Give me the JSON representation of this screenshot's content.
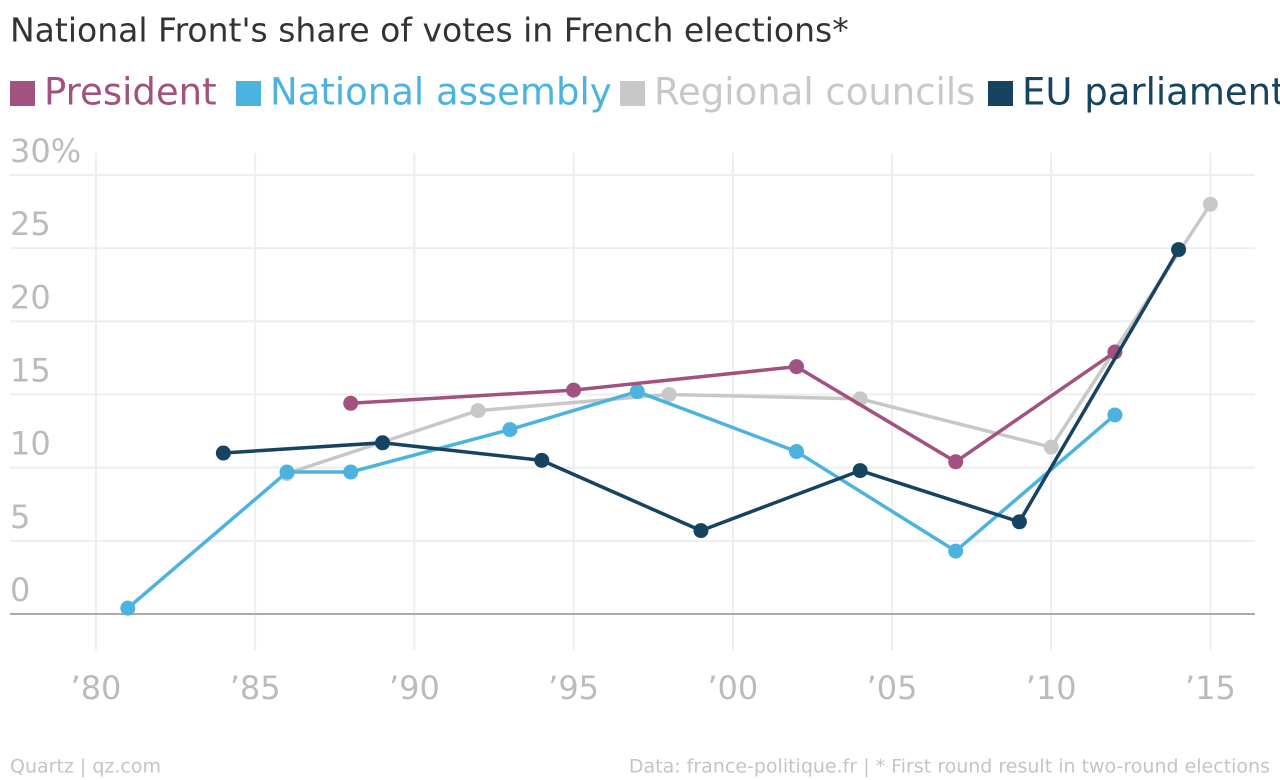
{
  "chart_data": {
    "type": "line",
    "title": "National Front's share of votes in French elections*",
    "xlim": [
      1977.3,
      2016.4
    ],
    "xticks": [
      {
        "value": 1980,
        "label": "’80"
      },
      {
        "value": 1985,
        "label": "’85"
      },
      {
        "value": 1990,
        "label": "’90"
      },
      {
        "value": 1995,
        "label": "’95"
      },
      {
        "value": 2000,
        "label": "’00"
      },
      {
        "value": 2005,
        "label": "’05"
      },
      {
        "value": 2010,
        "label": "’10"
      },
      {
        "value": 2015,
        "label": "’15"
      }
    ],
    "ylim": [
      -2.5,
      31.5
    ],
    "yticks": [
      0,
      5,
      10,
      15,
      20,
      25,
      {
        "value": 30,
        "label": "30%"
      }
    ],
    "grid": true,
    "series": [
      {
        "name": "President",
        "color": "#a2527f",
        "x": [
          1988,
          1995,
          2002,
          2007,
          2012
        ],
        "values": [
          14.4,
          15.3,
          16.9,
          10.4,
          17.9
        ]
      },
      {
        "name": "National assembly",
        "color": "#4cb3e0",
        "x": [
          1981,
          1986,
          1988,
          1993,
          1997,
          2002,
          2007,
          2012
        ],
        "values": [
          0.4,
          9.7,
          9.7,
          12.6,
          15.2,
          11.1,
          4.3,
          13.6
        ]
      },
      {
        "name": "Regional councils",
        "color": "#c8c8c8",
        "x": [
          1986,
          1992,
          1998,
          2004,
          2010,
          2015
        ],
        "values": [
          9.6,
          13.9,
          15.0,
          14.7,
          11.4,
          28.0
        ]
      },
      {
        "name": "EU parliament",
        "color": "#16435f",
        "x": [
          1984,
          1989,
          1994,
          1999,
          2004,
          2009,
          2014
        ],
        "values": [
          11.0,
          11.7,
          10.5,
          5.7,
          9.8,
          6.3,
          24.9
        ]
      }
    ],
    "source": "Quartz | qz.com",
    "note": "Data: france-politique.fr | * First round result in two-round elections"
  }
}
